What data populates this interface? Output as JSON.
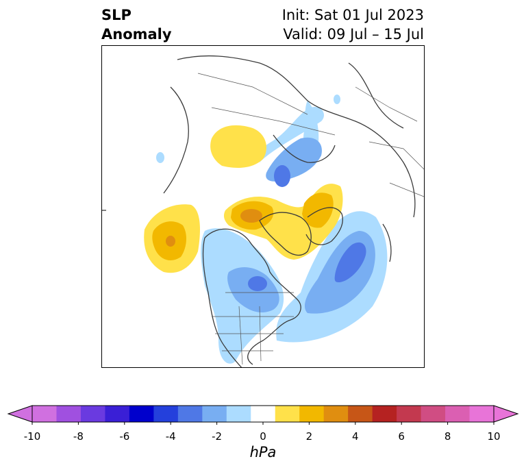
{
  "title": {
    "variable_line1": "SLP",
    "variable_line2": "Anomaly",
    "init": "Init: Sat 01 Jul 2023",
    "valid": "Valid: 09 Jul – 15 Jul"
  },
  "colorbar": {
    "unit": "hPa",
    "ticks": [
      "-10",
      "-8",
      "-6",
      "-4",
      "-2",
      "0",
      "2",
      "4",
      "6",
      "8",
      "10"
    ],
    "colors": [
      "#d070e0",
      "#a050e0",
      "#6a3ae0",
      "#3a1fd6",
      "#0000cc",
      "#2440dc",
      "#4f78e6",
      "#78aef2",
      "#acdcff",
      "#ffffff",
      "#ffe14a",
      "#f2b800",
      "#e08e10",
      "#c75617",
      "#b52221",
      "#c3394f",
      "#d04d83",
      "#db5fb2",
      "#e874d8"
    ],
    "extend_min_color": "#d070e0",
    "extend_max_color": "#e874d8"
  },
  "map_colors": {
    "coast": "#3a3a3a",
    "light_blue": "#acdcff",
    "mid_blue": "#78aef2",
    "blue": "#4f78e6",
    "yellow": "#ffe14a",
    "gold": "#f2b800",
    "orange": "#e08e10"
  }
}
